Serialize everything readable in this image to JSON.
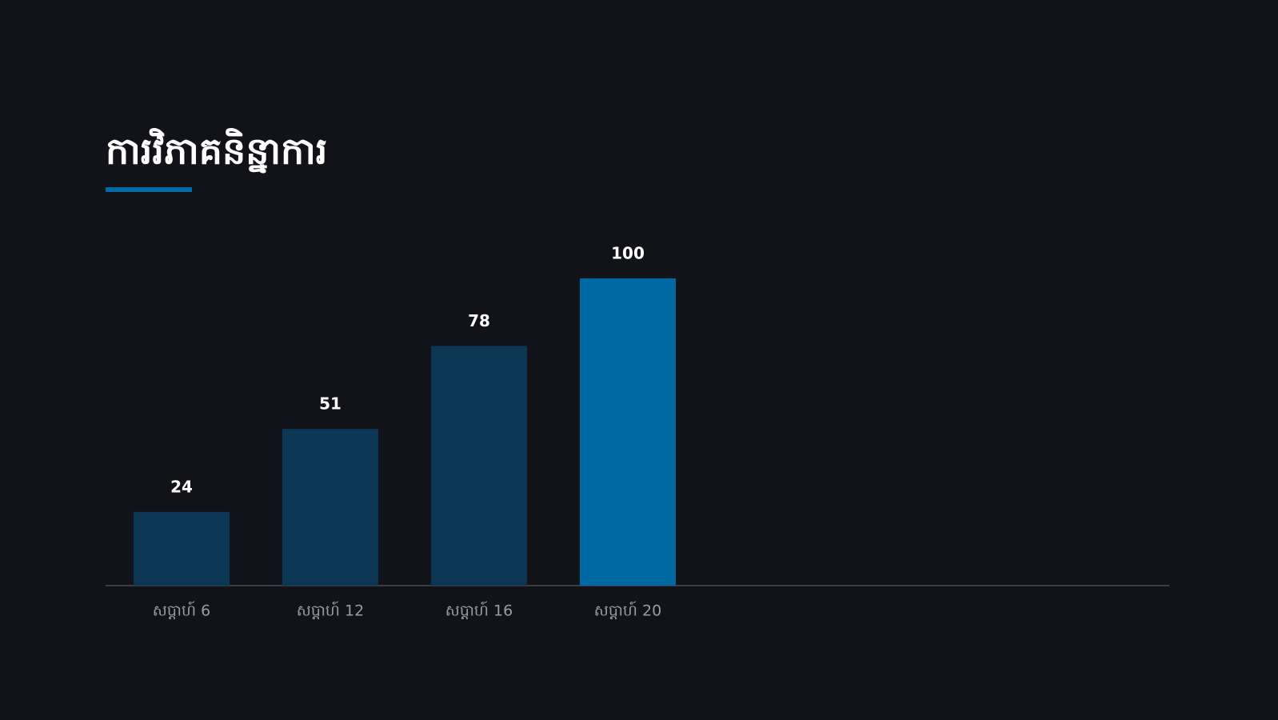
{
  "chart_data": {
    "type": "bar",
    "title": "ការវិភាគនិន្នាការ",
    "categories": [
      "សប្តាហ៍ 6",
      "សប្តាហ៍ 12",
      "សប្តាហ៍ 16",
      "សប្តាហ៍ 20"
    ],
    "values": [
      24,
      51,
      78,
      100
    ],
    "colors": [
      "#0b3654",
      "#0b3654",
      "#0b3654",
      "#0069a3"
    ],
    "ylim": [
      0,
      100
    ],
    "grid": false
  }
}
